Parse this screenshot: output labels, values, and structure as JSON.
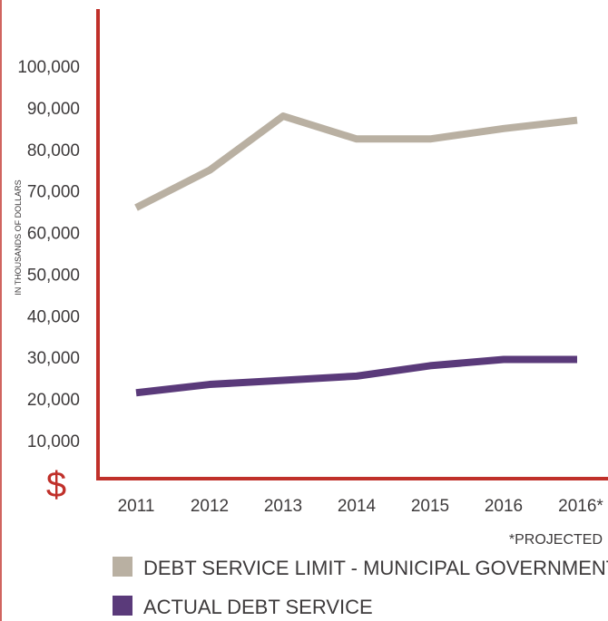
{
  "chart_data": {
    "type": "line",
    "categories": [
      "2011",
      "2012",
      "2013",
      "2014",
      "2015",
      "2016",
      "2016*"
    ],
    "ylabel": "IN THOUSANDS OF DOLLARS",
    "currency_symbol": "$",
    "y_ticks": [
      10000,
      20000,
      30000,
      40000,
      50000,
      60000,
      70000,
      80000,
      90000,
      100000
    ],
    "y_tick_labels": [
      "10,000",
      "20,000",
      "30,000",
      "40,000",
      "50,000",
      "60,000",
      "70,000",
      "80,000",
      "90,000",
      "100,000"
    ],
    "ylim": [
      0,
      110000
    ],
    "grid": false,
    "footnote": "*PROJECTED",
    "series": [
      {
        "name": "DEBT SERVICE LIMIT - MUNICIPAL GOVERNMENT ACT",
        "color": "#b9b0a2",
        "values": [
          66000,
          75000,
          88000,
          82500,
          82500,
          85000,
          87000
        ]
      },
      {
        "name": "ACTUAL DEBT SERVICE",
        "color": "#5a3a7a",
        "values": [
          21500,
          23500,
          24500,
          25500,
          28000,
          29500,
          29500
        ]
      }
    ],
    "axis_color": "#c0302a",
    "legend_position": "bottom"
  }
}
